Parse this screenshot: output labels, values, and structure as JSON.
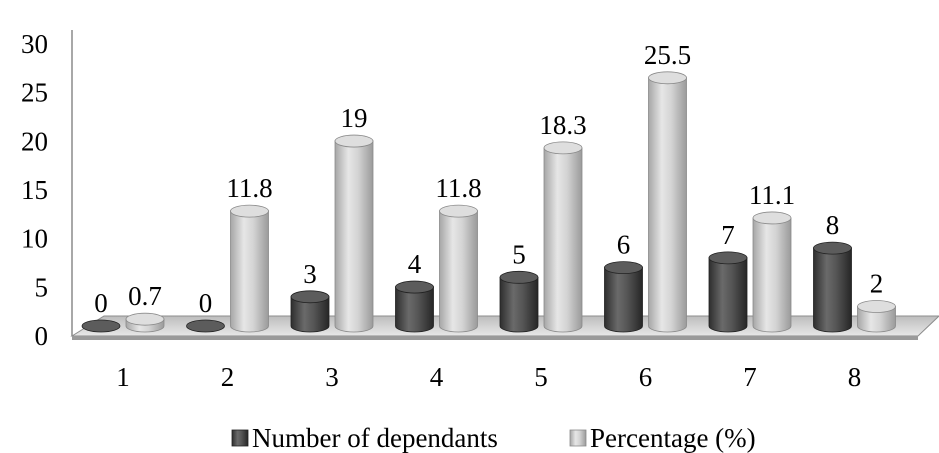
{
  "chart_data": {
    "type": "bar",
    "title": "",
    "xlabel": "",
    "ylabel": "",
    "categories": [
      "1",
      "2",
      "3",
      "4",
      "5",
      "6",
      "7",
      "8"
    ],
    "series": [
      {
        "name": "Number of dependants",
        "values": [
          0,
          0,
          3,
          4,
          5,
          6,
          7,
          8
        ],
        "labels": [
          "0",
          "0",
          "3",
          "4",
          "5",
          "6",
          "7",
          "8"
        ],
        "color": "#4a4a4a"
      },
      {
        "name": "Percentage (%)",
        "values": [
          0.7,
          11.8,
          19,
          11.8,
          18.3,
          25.5,
          11.1,
          2
        ],
        "labels": [
          "0.7",
          "11.8",
          "19",
          "11.8",
          "18.3",
          "25.5",
          "11.1",
          "2"
        ],
        "color": "#c4c4c4"
      }
    ],
    "ylim": [
      0,
      30
    ],
    "yticks": [
      "0",
      "5",
      "10",
      "15",
      "20",
      "25",
      "30"
    ],
    "grid": false,
    "legend": "bottom",
    "style": "3d-cylinder"
  }
}
